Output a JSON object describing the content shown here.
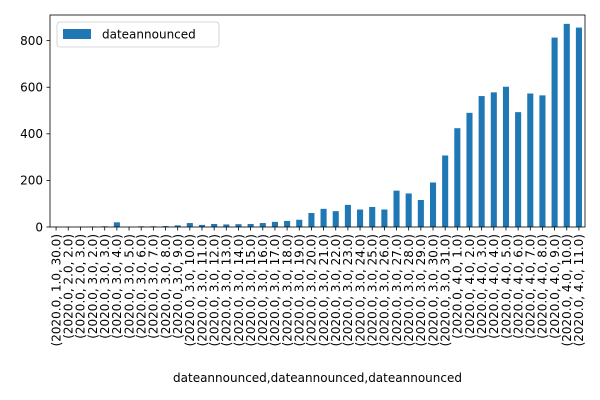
{
  "chart_data": {
    "type": "bar",
    "title": "",
    "xlabel": "dateannounced,dateannounced,dateannounced",
    "ylabel": "",
    "ylim": [
      0,
      910
    ],
    "yticks": [
      0,
      200,
      400,
      600,
      800
    ],
    "legend": {
      "position": "top-left",
      "entries": [
        "dateannounced"
      ]
    },
    "grid": false,
    "bar_color": "#1f77b4",
    "series": [
      {
        "name": "dateannounced",
        "values": [
          1,
          1,
          1,
          2,
          3,
          20,
          1,
          3,
          3,
          4,
          7,
          17,
          9,
          13,
          11,
          12,
          13,
          17,
          22,
          26,
          31,
          60,
          78,
          68,
          95,
          75,
          86,
          75,
          156,
          144,
          116,
          191,
          307,
          424,
          490,
          562,
          578,
          602,
          493,
          573,
          565,
          813,
          872,
          856
        ]
      }
    ],
    "categories": [
      "(2020.0, 1.0, 30.0)",
      "(2020.0, 2.0, 2.0)",
      "(2020.0, 2.0, 3.0)",
      "(2020.0, 3.0, 2.0)",
      "(2020.0, 3.0, 3.0)",
      "(2020.0, 3.0, 4.0)",
      "(2020.0, 3.0, 5.0)",
      "(2020.0, 3.0, 6.0)",
      "(2020.0, 3.0, 7.0)",
      "(2020.0, 3.0, 8.0)",
      "(2020.0, 3.0, 9.0)",
      "(2020.0, 3.0, 10.0)",
      "(2020.0, 3.0, 11.0)",
      "(2020.0, 3.0, 12.0)",
      "(2020.0, 3.0, 13.0)",
      "(2020.0, 3.0, 14.0)",
      "(2020.0, 3.0, 15.0)",
      "(2020.0, 3.0, 16.0)",
      "(2020.0, 3.0, 17.0)",
      "(2020.0, 3.0, 18.0)",
      "(2020.0, 3.0, 19.0)",
      "(2020.0, 3.0, 20.0)",
      "(2020.0, 3.0, 21.0)",
      "(2020.0, 3.0, 22.0)",
      "(2020.0, 3.0, 23.0)",
      "(2020.0, 3.0, 24.0)",
      "(2020.0, 3.0, 25.0)",
      "(2020.0, 3.0, 26.0)",
      "(2020.0, 3.0, 27.0)",
      "(2020.0, 3.0, 28.0)",
      "(2020.0, 3.0, 29.0)",
      "(2020.0, 3.0, 30.0)",
      "(2020.0, 3.0, 31.0)",
      "(2020.0, 4.0, 1.0)",
      "(2020.0, 4.0, 2.0)",
      "(2020.0, 4.0, 3.0)",
      "(2020.0, 4.0, 4.0)",
      "(2020.0, 4.0, 5.0)",
      "(2020.0, 4.0, 6.0)",
      "(2020.0, 4.0, 7.0)",
      "(2020.0, 4.0, 8.0)",
      "(2020.0, 4.0, 9.0)",
      "(2020.0, 4.0, 10.0)",
      "(2020.0, 4.0, 11.0)"
    ]
  }
}
